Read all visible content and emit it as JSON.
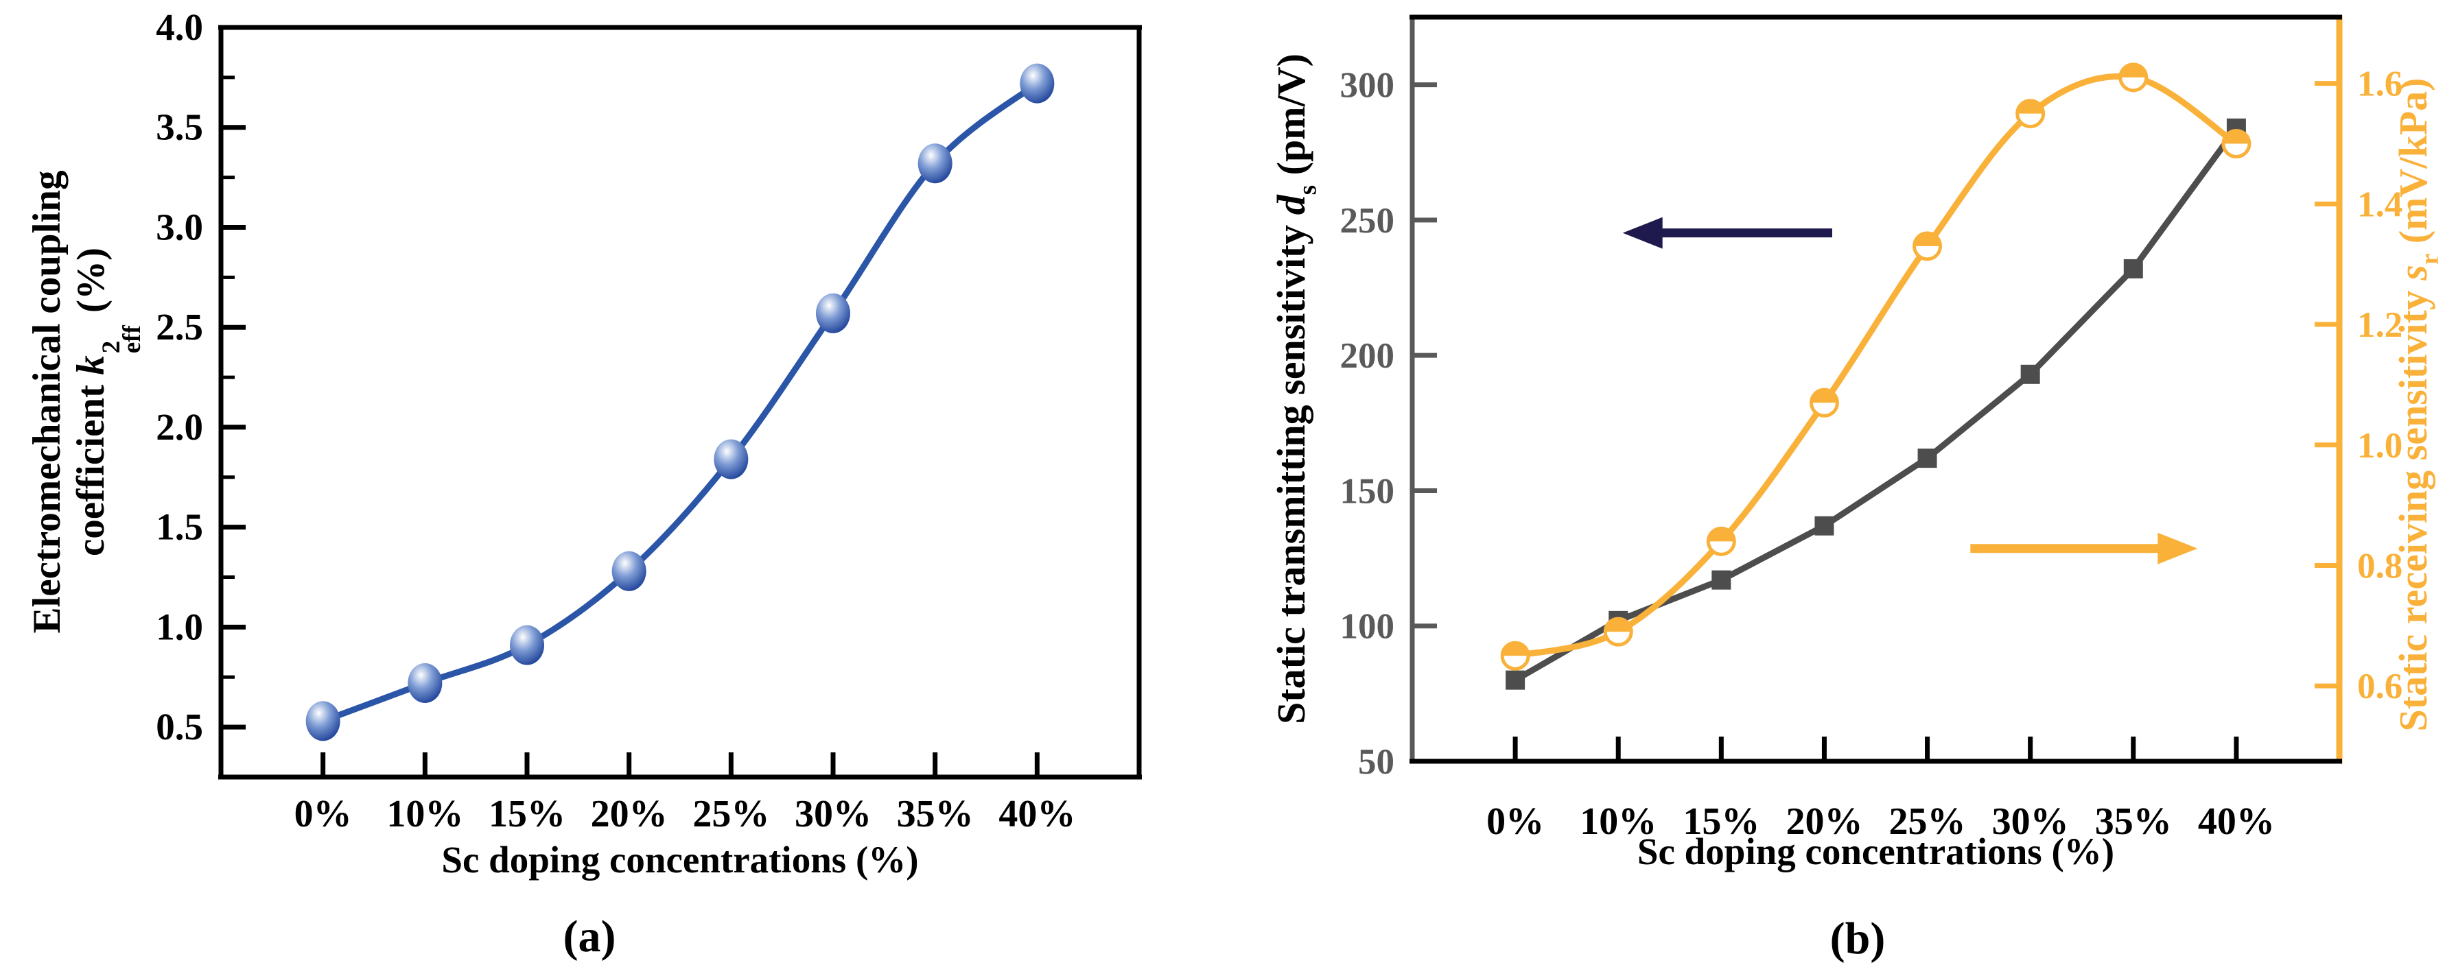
{
  "figure": {
    "background": "#ffffff",
    "captions": {
      "a": "(a)",
      "b": "(b)"
    }
  },
  "colors": {
    "blue_series": "#2B55A7",
    "gray_series": "#4D4D4D",
    "orange_series": "#F9B13A",
    "navy_arrow": "#1F1A4E",
    "gray_axis": "#595959",
    "black": "#000000"
  },
  "chart_data": [
    {
      "id": "a",
      "type": "line",
      "title": "",
      "caption": "(a)",
      "xlabel": "Sc doping concentrations (%)",
      "categories": [
        "0%",
        "10%",
        "15%",
        "20%",
        "25%",
        "30%",
        "35%",
        "40%"
      ],
      "ylabel": {
        "line1": "Electromechanical coupling",
        "line2_prefix": "coefficient ",
        "symbol": "k",
        "sup": "2",
        "sub": "eff",
        "suffix": " (%)"
      },
      "axes": [
        {
          "side": "left",
          "ylim": [
            0.25,
            4.0
          ],
          "tick_values": [
            0.5,
            1.0,
            1.5,
            2.0,
            2.5,
            3.0,
            3.5,
            4.0
          ],
          "tick_labels": [
            "0.5",
            "1.0",
            "1.5",
            "2.0",
            "2.5",
            "3.0",
            "3.5",
            "4.0"
          ],
          "minor_ticks": [
            0.75,
            1.25,
            1.75,
            2.25,
            2.75,
            3.25,
            3.75
          ],
          "color": "#000000",
          "label_color": "#000000"
        }
      ],
      "series": [
        {
          "name": "k2_eff_percent",
          "axis": 0,
          "color": "#2B55A7",
          "marker": "sphere",
          "smooth": true,
          "line_width": 9,
          "values": [
            0.53,
            0.72,
            0.91,
            1.28,
            1.84,
            2.57,
            3.32,
            3.72
          ]
        }
      ],
      "annotations": [],
      "legend": null,
      "grid": false
    },
    {
      "id": "b",
      "type": "line",
      "title": "",
      "caption": "(b)",
      "xlabel": "Sc doping concentrations (%)",
      "categories": [
        "0%",
        "10%",
        "15%",
        "20%",
        "25%",
        "30%",
        "35%",
        "40%"
      ],
      "ylabel_left": {
        "prefix": "Static transmitting sensitivity ",
        "symbol": "d",
        "sub": "s",
        "suffix": " (pm/V)"
      },
      "ylabel_right": {
        "prefix": "Static receiving sensitivity ",
        "symbol": "s",
        "sub": "r",
        "suffix": " (mV/kPa)"
      },
      "axes": [
        {
          "side": "left",
          "ylim": [
            50,
            325
          ],
          "tick_values": [
            50,
            100,
            150,
            200,
            250,
            300
          ],
          "tick_labels": [
            "50",
            "100",
            "150",
            "200",
            "250",
            "300"
          ],
          "minor_ticks": [],
          "color": "#595959",
          "label_color": "#5A5A5A"
        },
        {
          "side": "right",
          "ylim": [
            0.475,
            1.71
          ],
          "tick_values": [
            0.6,
            0.8,
            1.0,
            1.2,
            1.4,
            1.6
          ],
          "tick_labels": [
            "0.6",
            "0.8",
            "1.0",
            "1.2",
            "1.4",
            "1.6"
          ],
          "minor_ticks": [],
          "color": "#F9B13A",
          "label_color": "#F9B13A"
        }
      ],
      "series": [
        {
          "name": "d_s_pm_per_V",
          "axis": 0,
          "color": "#4D4D4D",
          "marker": "square",
          "smooth": false,
          "line_width": 9,
          "values": [
            80,
            102,
            117,
            137,
            162,
            193,
            232,
            284
          ]
        },
        {
          "name": "s_r_mV_per_kPa",
          "axis": 1,
          "color": "#F9B13A",
          "marker": "half-circle",
          "smooth": true,
          "line_width": 9,
          "values": [
            0.65,
            0.69,
            0.84,
            1.07,
            1.33,
            1.55,
            1.61,
            1.5
          ]
        }
      ],
      "annotations": [
        {
          "type": "arrow",
          "dir": "left",
          "color": "#1F1A4E",
          "fx": [
            0.453,
            0.227
          ],
          "fy": [
            0.29,
            0.29
          ],
          "width": 13
        },
        {
          "type": "arrow",
          "dir": "right",
          "color": "#F9B13A",
          "fx": [
            0.602,
            0.847
          ],
          "fy": [
            0.714,
            0.714
          ],
          "width": 13
        }
      ],
      "legend": null,
      "grid": false
    }
  ]
}
